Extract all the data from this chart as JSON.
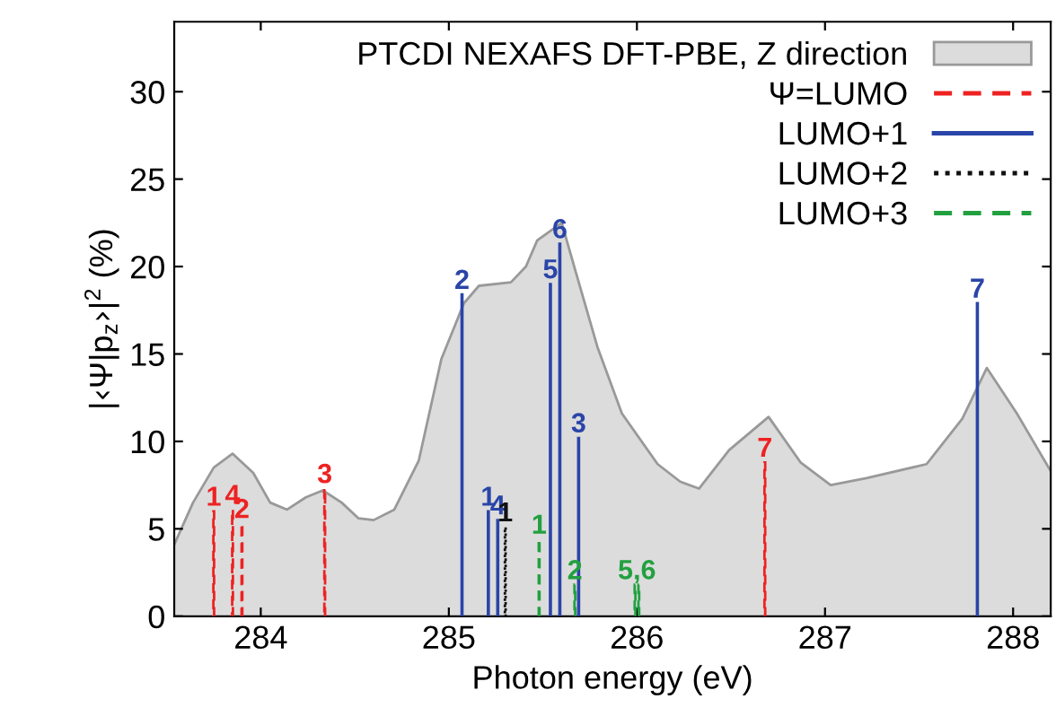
{
  "chart_data": {
    "type": "bar",
    "xlabel": "Photon energy (eV)",
    "ylabel": "|‹Ψ|p$_{z}$›|$^{2}$ (%)",
    "xlim": [
      283.54,
      288.2
    ],
    "xticks": [
      284,
      285,
      286,
      287,
      288
    ],
    "ylim": [
      0,
      34
    ],
    "yticks": [
      0,
      5,
      10,
      15,
      20,
      25,
      30
    ],
    "grid": false,
    "legend": "top right",
    "series": [
      {
        "type": "area",
        "name": "PTCDI NEXAFS DFT-PBE, Z direction",
        "color": "#dcdcdc",
        "x": [
          283.54,
          283.64,
          283.75,
          283.85,
          283.96,
          284.05,
          284.14,
          284.24,
          284.33,
          284.43,
          284.52,
          284.6,
          284.71,
          284.84,
          284.96,
          285.08,
          285.16,
          285.33,
          285.41,
          285.47,
          285.6,
          285.68,
          285.79,
          285.92,
          286.11,
          286.23,
          286.33,
          286.49,
          286.7,
          286.87,
          287.03,
          287.22,
          287.54,
          287.73,
          287.86,
          288.02,
          288.2
        ],
        "values": [
          4.1,
          6.5,
          8.5,
          9.3,
          8.2,
          6.5,
          6.1,
          6.8,
          7.2,
          6.5,
          5.6,
          5.5,
          6.1,
          8.9,
          14.7,
          17.9,
          18.9,
          19.1,
          20.0,
          21.5,
          22.5,
          19.5,
          15.4,
          11.6,
          8.7,
          7.7,
          7.3,
          9.5,
          11.4,
          8.8,
          7.5,
          7.9,
          8.7,
          11.3,
          14.2,
          11.6,
          8.3
        ]
      },
      {
        "name": "Ψ=LUMO",
        "color": "#ee2222",
        "line_style": "dashed",
        "x": [
          283.75,
          283.85,
          283.9,
          284.34,
          286.68
        ],
        "values": [
          6.0,
          6.1,
          5.3,
          7.3,
          8.8
        ]
      },
      {
        "name": "LUMO+1",
        "color": "#2a45a8",
        "line_style": "solid",
        "x": [
          285.07,
          285.21,
          285.26,
          285.54,
          285.59,
          285.69,
          287.81
        ],
        "values": [
          18.4,
          6.0,
          5.5,
          19.0,
          21.3,
          10.2,
          17.9
        ]
      },
      {
        "name": "LUMO+2",
        "color": "#111111",
        "line_style": "dotted",
        "x": [
          285.3
        ],
        "values": [
          5.1
        ]
      },
      {
        "name": "LUMO+3",
        "color": "#22a040",
        "line_style": "dashed",
        "x": [
          285.48,
          285.67,
          285.99,
          286.01
        ],
        "values": [
          4.4,
          1.8,
          1.8,
          1.8
        ]
      }
    ],
    "annotations": [
      {
        "text": "1",
        "x": 283.75,
        "y": 6.0
      },
      {
        "text": "4",
        "x": 283.85,
        "y": 6.1
      },
      {
        "text": "2",
        "x": 283.9,
        "y": 5.3
      },
      {
        "text": "3",
        "x": 284.34,
        "y": 7.3
      },
      {
        "text": "7",
        "x": 286.68,
        "y": 8.8
      },
      {
        "text": "2",
        "x": 285.07,
        "y": 18.4
      },
      {
        "text": "1",
        "x": 285.21,
        "y": 6.0
      },
      {
        "text": "4",
        "x": 285.26,
        "y": 5.5
      },
      {
        "text": "5",
        "x": 285.54,
        "y": 19.0
      },
      {
        "text": "6",
        "x": 285.59,
        "y": 21.3
      },
      {
        "text": "3",
        "x": 285.69,
        "y": 10.2
      },
      {
        "text": "7",
        "x": 287.81,
        "y": 17.9
      },
      {
        "text": "1",
        "x": 285.3,
        "y": 5.1
      },
      {
        "text": "1",
        "x": 285.48,
        "y": 4.4
      },
      {
        "text": "2",
        "x": 285.67,
        "y": 1.8
      },
      {
        "text": "5,6",
        "x": 286.0,
        "y": 1.8
      }
    ]
  }
}
